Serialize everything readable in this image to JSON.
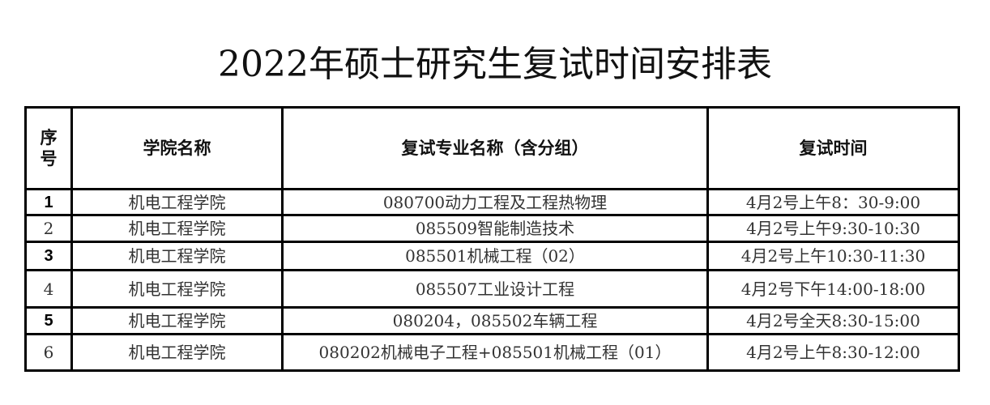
{
  "title": "2022年硕士研究生复试时间安排表",
  "table": {
    "headers": [
      "序\n号",
      "学院名称",
      "复试专业名称（含分组）",
      "复试时间"
    ],
    "rows": [
      {
        "seq": "1",
        "college": "机电工程学院",
        "major": "080700动力工程及工程热物理",
        "time": "4月2号上午8：30-9:00"
      },
      {
        "seq": "2",
        "college": "机电工程学院",
        "major": "085509智能制造技术",
        "time": "4月2号上午9:30-10:30"
      },
      {
        "seq": "3",
        "college": "机电工程学院",
        "major": "085501机械工程（02）",
        "time": "4月2号上午10:30-11:30"
      },
      {
        "seq": "4",
        "college": "机电工程学院",
        "major": "085507工业设计工程",
        "time": "4月2号下午14:00-18:00"
      },
      {
        "seq": "5",
        "college": "机电工程学院",
        "major": "080204，085502车辆工程",
        "time": "4月2号全天8:30-15:00"
      },
      {
        "seq": "6",
        "college": "机电工程学院",
        "major": "080202机械电子工程+085501机械工程（01）",
        "time": "4月2号上午8:30-12:00"
      }
    ]
  }
}
